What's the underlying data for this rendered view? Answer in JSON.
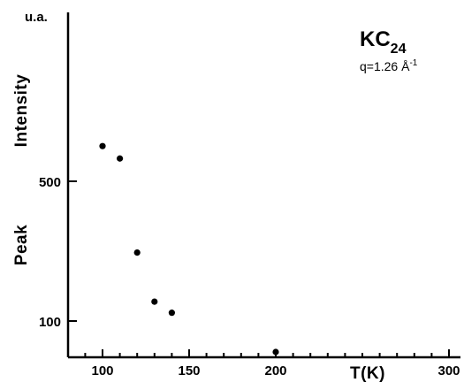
{
  "chart_data": {
    "type": "scatter",
    "title": "",
    "xlabel": "T(K)",
    "ylabel_parts": [
      "Peak",
      "Intensity"
    ],
    "y_unit": "u.a.",
    "annotation": {
      "compound_base": "KC",
      "compound_subscript": "24",
      "q_prefix": "q=1.26 Å",
      "q_superscript": "-1"
    },
    "xlim": [
      80,
      305
    ],
    "x_ticks": [
      100,
      150,
      200,
      300
    ],
    "x_tick_labels": [
      "100",
      "150",
      "200",
      "300"
    ],
    "y_tick_labels": [
      "500",
      "100"
    ],
    "y_tick_values": [
      500,
      100
    ],
    "y_scale": "log",
    "grid": false,
    "points": [
      {
        "x": 100,
        "y": 750
      },
      {
        "x": 110,
        "y": 650
      },
      {
        "x": 120,
        "y": 220
      },
      {
        "x": 130,
        "y": 125
      },
      {
        "x": 140,
        "y": 110
      },
      {
        "x": 200,
        "y": 70
      }
    ]
  }
}
